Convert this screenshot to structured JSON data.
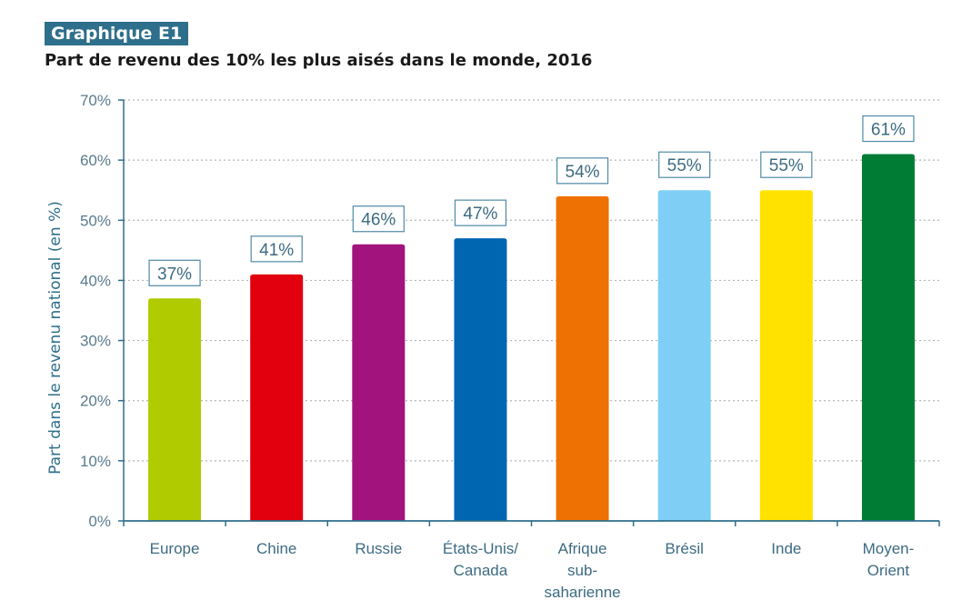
{
  "header": {
    "badge": "Graphique E1",
    "title": "Part de revenu des 10% les plus aisés dans le monde, 2016"
  },
  "chart_data": {
    "type": "bar",
    "ylabel": "Part dans le revenu national (en %)",
    "xlabel": "",
    "ylim": [
      0,
      70
    ],
    "yticks": [
      0,
      10,
      20,
      30,
      40,
      50,
      60,
      70
    ],
    "ytick_labels": [
      "0%",
      "10%",
      "20%",
      "30%",
      "40%",
      "50%",
      "60%",
      "70%"
    ],
    "grid": true,
    "categories": [
      [
        "Europe"
      ],
      [
        "Chine"
      ],
      [
        "Russie"
      ],
      [
        "États-Unis/",
        "Canada"
      ],
      [
        "Afrique",
        "sub-",
        "saharienne"
      ],
      [
        "Brésil"
      ],
      [
        "Inde"
      ],
      [
        "Moyen-",
        "Orient"
      ]
    ],
    "values": [
      37,
      41,
      46,
      47,
      54,
      55,
      55,
      61
    ],
    "value_labels": [
      "37%",
      "41%",
      "46%",
      "47%",
      "54%",
      "55%",
      "55%",
      "61%"
    ],
    "colors": [
      "#b0cb00",
      "#e2000f",
      "#a3137d",
      "#0066b1",
      "#ed7203",
      "#7fcef5",
      "#ffe200",
      "#007c34"
    ],
    "axis_color": "#2e6f8c",
    "grid_color": "#b5b5b5"
  }
}
